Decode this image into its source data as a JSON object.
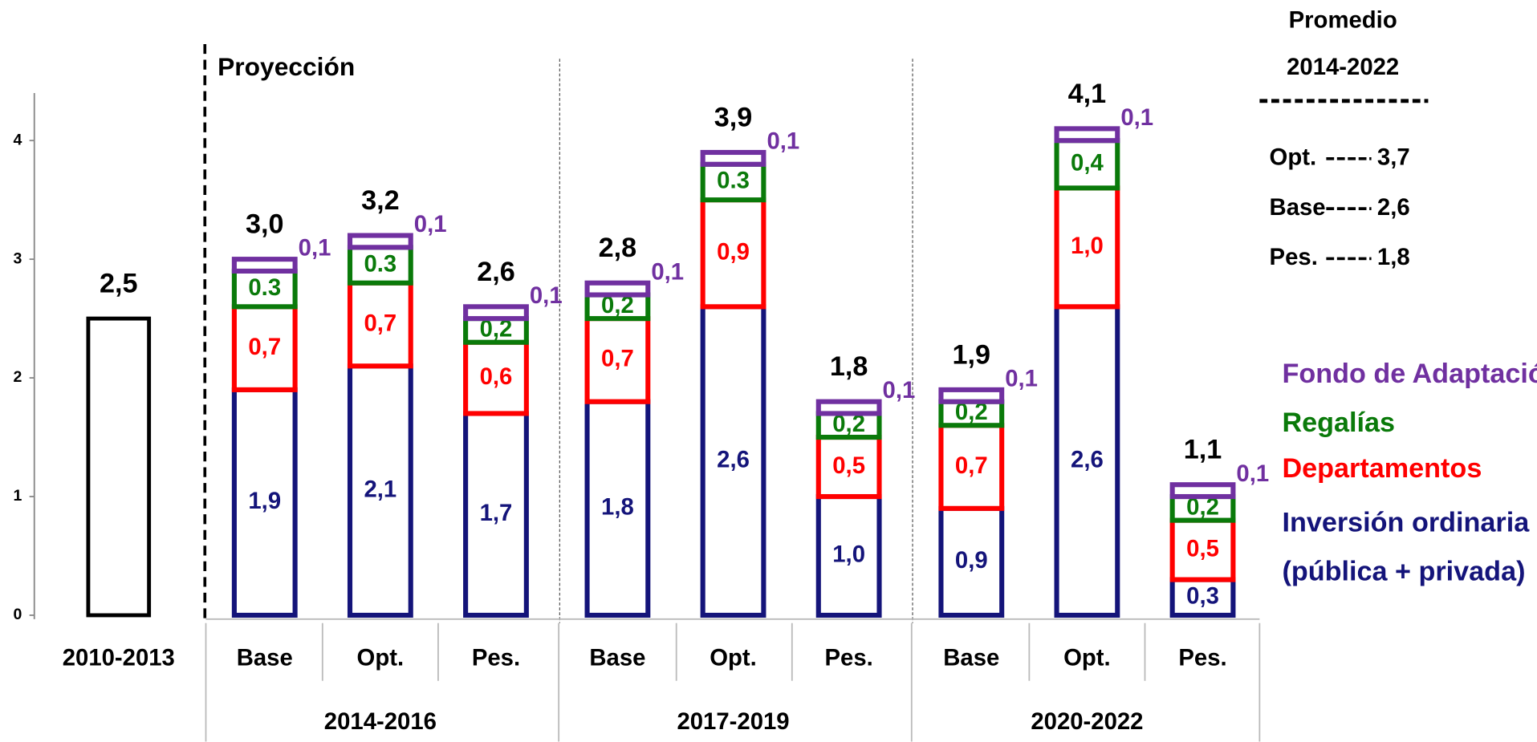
{
  "chart_data": {
    "type": "stacked-bar",
    "annotation": "Proyección",
    "categories": [
      "2010-2013",
      "Base",
      "Opt.",
      "Pes.",
      "Base",
      "Opt.",
      "Pes.",
      "Base",
      "Opt.",
      "Pes."
    ],
    "groups": [
      "2014-2016",
      "2017-2019",
      "2020-2022"
    ],
    "ylim": [
      0,
      4.4
    ],
    "yticks": [
      0,
      1,
      2,
      3,
      4
    ],
    "series": [
      {
        "name": "Inversión ordinaria",
        "name_note": "(pública + privada)",
        "color": "#14147a",
        "values": [
          null,
          1.9,
          2.1,
          1.7,
          1.8,
          2.6,
          1.0,
          0.9,
          2.6,
          0.3
        ],
        "value_labels": [
          null,
          "1,9",
          "2,1",
          "1,7",
          "1,8",
          "2,6",
          "1,0",
          "0,9",
          "2,6",
          "0,3"
        ]
      },
      {
        "name": "Departamentos",
        "color": "#ff0000",
        "values": [
          null,
          0.7,
          0.7,
          0.6,
          0.7,
          0.9,
          0.5,
          0.7,
          1.0,
          0.5
        ],
        "value_labels": [
          null,
          "0,7",
          "0,7",
          "0,6",
          "0,7",
          "0,9",
          "0,5",
          "0,7",
          "1,0",
          "0,5"
        ]
      },
      {
        "name": "Regalías",
        "color": "#0a7a0a",
        "values": [
          null,
          0.3,
          0.3,
          0.2,
          0.2,
          0.3,
          0.2,
          0.2,
          0.4,
          0.2
        ],
        "value_labels": [
          null,
          "0.3",
          "0.3",
          "0,2",
          "0,2",
          "0.3",
          "0,2",
          "0,2",
          "0,4",
          "0,2"
        ]
      },
      {
        "name": "Fondo de Adaptación",
        "color": "#7030a0",
        "values": [
          null,
          0.1,
          0.1,
          0.1,
          0.1,
          0.1,
          0.1,
          0.1,
          0.1,
          0.1
        ],
        "value_labels": [
          null,
          "0,1",
          "0,1",
          "0,1",
          "0,1",
          "0,1",
          "0,1",
          "0,1",
          "0,1",
          "0,1"
        ]
      }
    ],
    "totals": {
      "color": "#000000",
      "values": [
        2.5,
        3.0,
        3.2,
        2.6,
        2.8,
        3.9,
        1.8,
        1.9,
        4.1,
        1.1
      ],
      "value_labels": [
        "2,5",
        "3,0",
        "3,2",
        "2,6",
        "2,8",
        "3,9",
        "1,8",
        "1,9",
        "4,1",
        "1,1"
      ]
    },
    "averages": {
      "title": [
        "Promedio",
        "2014-2022"
      ],
      "labels": [
        "Opt.",
        "Base",
        "Pes."
      ],
      "values": [
        3.7,
        2.6,
        1.8
      ],
      "value_labels": [
        "3,7",
        "2,6",
        "1,8"
      ]
    }
  }
}
